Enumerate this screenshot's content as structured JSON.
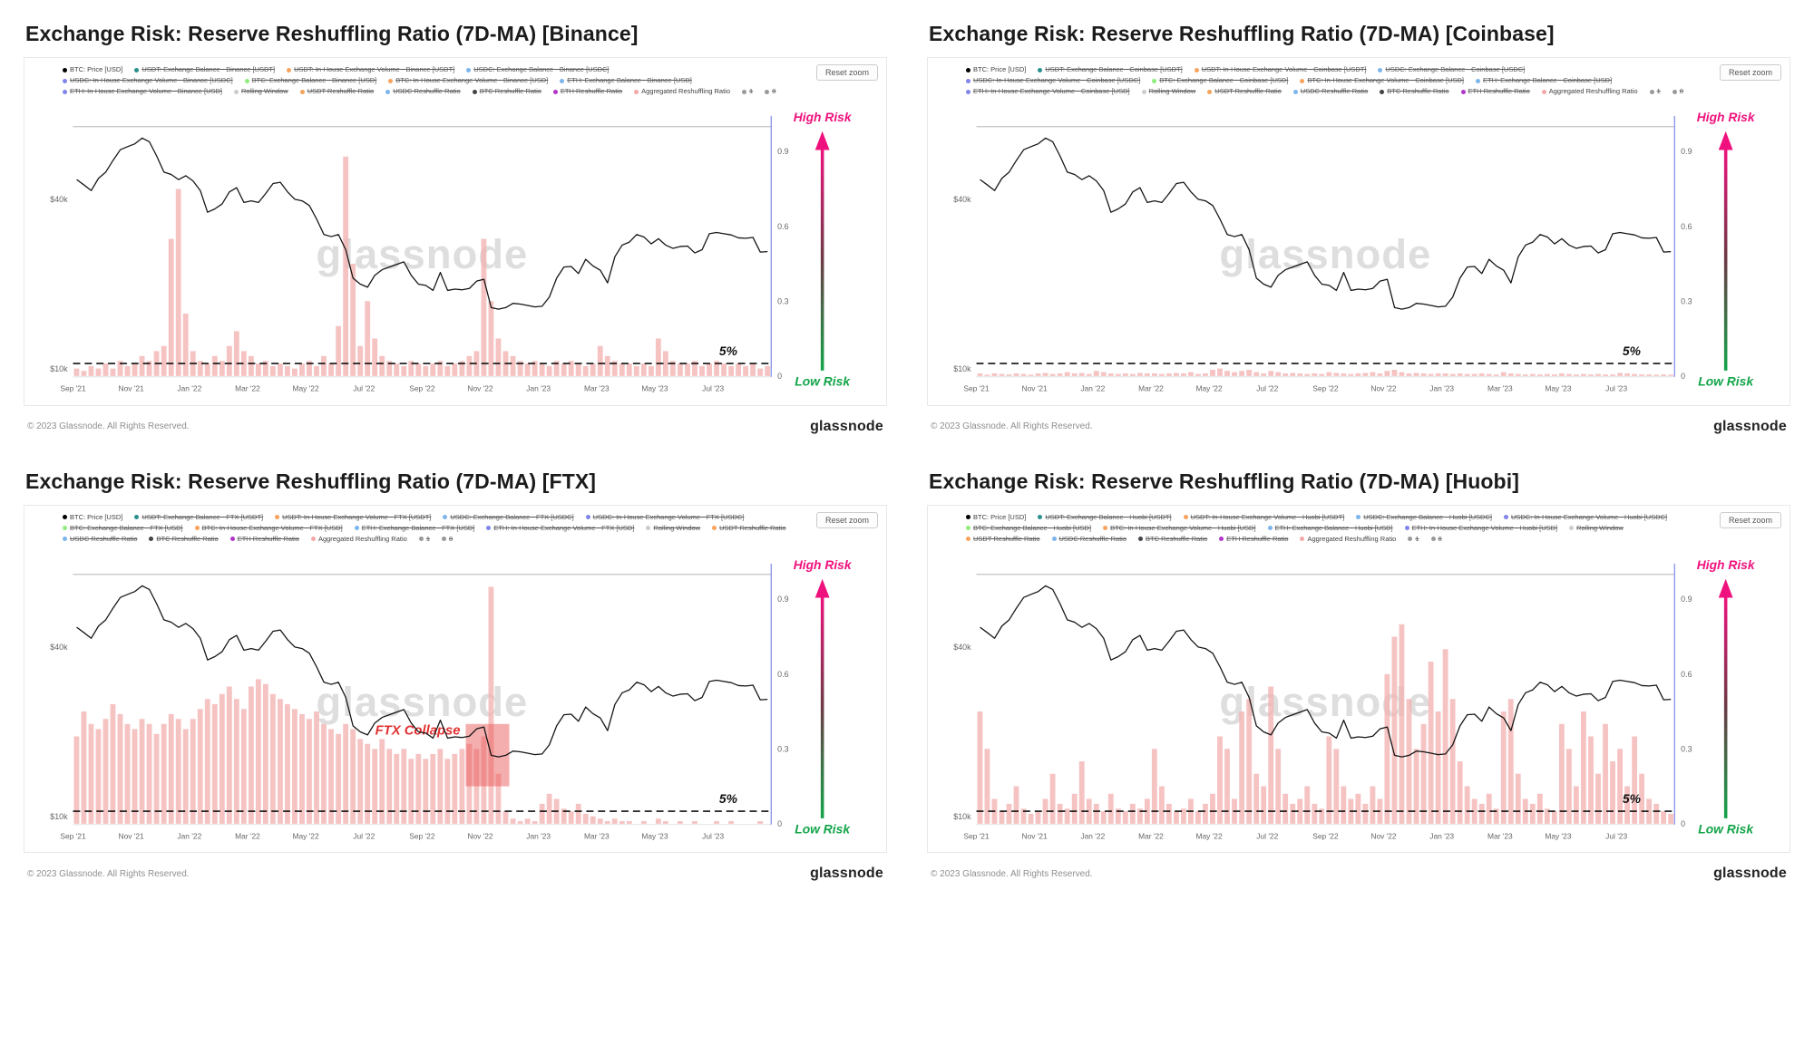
{
  "shared": {
    "reset_zoom_label": "Reset zoom",
    "watermark": "glassnode",
    "copyright": "© 2023 Glassnode. All Rights Reserved.",
    "brand": "glassnode",
    "high_risk_label": "High Risk",
    "low_risk_label": "Low Risk",
    "five_pct_label": "5%",
    "threshold_value": 0.05,
    "left_axis_ticks": [
      "$40k",
      "$10k"
    ],
    "right_axis_ticks": [
      "0.9",
      "0.6",
      "0.3",
      "0"
    ],
    "x_tick_labels": [
      "Sep '21",
      "Nov '21",
      "Jan '22",
      "Mar '22",
      "May '22",
      "Jul '22",
      "Sep '22",
      "Nov '22",
      "Jan '23",
      "Mar '23",
      "May '23",
      "Jul '23"
    ],
    "x_start": "Sep 2021",
    "x_end": "Aug 2023",
    "x_resolution": "weekly",
    "colors": {
      "bar": "#f3b2b2",
      "price": "#151515",
      "high_risk": "#ef127e",
      "low_risk": "#13a549",
      "annotation": "#e03131",
      "right_axis": "#7d88e8"
    },
    "legend_colors": [
      "#000000",
      "#2b908f",
      "#f7a35c",
      "#7cb5ec",
      "#8085e9",
      "#90ed7d",
      "#f7a35c",
      "#7cb5ec",
      "#8085e9",
      "#cccccc",
      "#f7a35c",
      "#7cb5ec",
      "#434348",
      "#b235c9",
      "#f4a9a9",
      "#999999",
      "#999999"
    ],
    "btc_price_usd_thousands": [
      47,
      45,
      43,
      47.5,
      50,
      55,
      60,
      61.5,
      63,
      66,
      64,
      57,
      50,
      49,
      47,
      48.5,
      46.5,
      43,
      36,
      37,
      38.5,
      42.5,
      44,
      39,
      39.5,
      39,
      42,
      45.5,
      46,
      42.5,
      40,
      39.5,
      38,
      34,
      30,
      29.5,
      30,
      26.5,
      21,
      20,
      19.5,
      21.5,
      22.5,
      23,
      23.5,
      24,
      21.5,
      20,
      19.8,
      19,
      22,
      19,
      19.2,
      19.1,
      19.3,
      20.5,
      20.8,
      16.5,
      16.3,
      16.5,
      17.1,
      17,
      16.8,
      16.6,
      16.7,
      18,
      21,
      23,
      23.1,
      21.8,
      24.5,
      23.2,
      22.4,
      20.2,
      25,
      27.5,
      28.2,
      30,
      29.4,
      27.8,
      29,
      27.5,
      26.8,
      27.2,
      27.3,
      25.8,
      26.5,
      30.2,
      30.5,
      30.2,
      29.9,
      29.2,
      29.1,
      29.3,
      26,
      26.1
    ]
  },
  "chart_data": [
    {
      "exchange": "Binance",
      "title": "Exchange Risk: Reserve Reshuffling Ratio (7D-MA) [Binance]",
      "type": "bar",
      "bar_series_name": "Aggregated Reshuffling Ratio",
      "line_series_name": "BTC: Price [USD]",
      "y_right_range": [
        0,
        1
      ],
      "y_left_scale": "log",
      "annotation": null,
      "aggregated_reshuffling_ratio": [
        0.03,
        0.02,
        0.04,
        0.03,
        0.05,
        0.03,
        0.06,
        0.04,
        0.05,
        0.08,
        0.06,
        0.1,
        0.12,
        0.55,
        0.75,
        0.25,
        0.1,
        0.06,
        0.05,
        0.08,
        0.06,
        0.12,
        0.18,
        0.1,
        0.08,
        0.05,
        0.06,
        0.04,
        0.05,
        0.04,
        0.03,
        0.05,
        0.06,
        0.04,
        0.08,
        0.05,
        0.2,
        0.88,
        0.45,
        0.12,
        0.3,
        0.15,
        0.08,
        0.06,
        0.05,
        0.04,
        0.06,
        0.05,
        0.04,
        0.05,
        0.06,
        0.04,
        0.05,
        0.06,
        0.08,
        0.1,
        0.55,
        0.3,
        0.15,
        0.1,
        0.08,
        0.06,
        0.05,
        0.06,
        0.05,
        0.04,
        0.06,
        0.05,
        0.06,
        0.05,
        0.04,
        0.05,
        0.12,
        0.08,
        0.06,
        0.05,
        0.05,
        0.04,
        0.05,
        0.04,
        0.15,
        0.1,
        0.06,
        0.05,
        0.05,
        0.06,
        0.04,
        0.05,
        0.06,
        0.05,
        0.04,
        0.05,
        0.04,
        0.05,
        0.03,
        0.04
      ],
      "legend": [
        {
          "label": "BTC: Price [USD]",
          "struck": false
        },
        {
          "label": "USDT: Exchange Balance - Binance [USDT]",
          "struck": true
        },
        {
          "label": "USDT: In-House Exchange Volume - Binance [USDT]",
          "struck": true
        },
        {
          "label": "USDC: Exchange Balance - Binance [USDC]",
          "struck": true
        },
        {
          "label": "USDC: In-House Exchange Volume - Binance [USDC]",
          "struck": true
        },
        {
          "label": "BTC: Exchange Balance - Binance [USD]",
          "struck": true
        },
        {
          "label": "BTC: In-House Exchange Volume - Binance [USD]",
          "struck": true
        },
        {
          "label": "ETH: Exchange Balance - Binance [USD]",
          "struck": true
        },
        {
          "label": "ETH: In-House Exchange Volume - Binance [USD]",
          "struck": true
        },
        {
          "label": "Rolling Window",
          "struck": true
        },
        {
          "label": "USDT Reshuffle Ratio",
          "struck": true
        },
        {
          "label": "USDC Reshuffle Ratio",
          "struck": true
        },
        {
          "label": "BTC Reshuffle Ratio",
          "struck": true
        },
        {
          "label": "ETH Reshuffle Ratio",
          "struck": true
        },
        {
          "label": "Aggregated Reshuffling Ratio",
          "struck": false
        },
        {
          "label": "1",
          "struck": true
        },
        {
          "label": "0",
          "struck": true
        }
      ]
    },
    {
      "exchange": "Coinbase",
      "title": "Exchange Risk: Reserve Reshuffling Ratio (7D-MA) [Coinbase]",
      "type": "bar",
      "bar_series_name": "Aggregated Reshuffling Ratio",
      "line_series_name": "BTC: Price [USD]",
      "y_right_range": [
        0,
        1
      ],
      "y_left_scale": "log",
      "annotation": null,
      "aggregated_reshuffling_ratio": [
        0.01,
        0.005,
        0.01,
        0.008,
        0.006,
        0.01,
        0.008,
        0.005,
        0.01,
        0.012,
        0.008,
        0.01,
        0.015,
        0.01,
        0.012,
        0.008,
        0.02,
        0.015,
        0.01,
        0.008,
        0.01,
        0.008,
        0.012,
        0.01,
        0.01,
        0.008,
        0.01,
        0.012,
        0.01,
        0.015,
        0.008,
        0.01,
        0.025,
        0.03,
        0.02,
        0.015,
        0.02,
        0.025,
        0.015,
        0.01,
        0.02,
        0.015,
        0.01,
        0.012,
        0.01,
        0.008,
        0.01,
        0.008,
        0.015,
        0.012,
        0.01,
        0.008,
        0.01,
        0.012,
        0.015,
        0.01,
        0.02,
        0.025,
        0.015,
        0.01,
        0.012,
        0.01,
        0.008,
        0.01,
        0.01,
        0.008,
        0.01,
        0.008,
        0.008,
        0.01,
        0.008,
        0.006,
        0.015,
        0.01,
        0.008,
        0.006,
        0.008,
        0.006,
        0.008,
        0.006,
        0.01,
        0.008,
        0.006,
        0.008,
        0.006,
        0.008,
        0.006,
        0.006,
        0.012,
        0.01,
        0.008,
        0.006,
        0.006,
        0.005,
        0.006,
        0.005
      ],
      "legend": [
        {
          "label": "BTC: Price [USD]",
          "struck": false
        },
        {
          "label": "USDT: Exchange Balance - Coinbase [USDT]",
          "struck": true
        },
        {
          "label": "USDT: In-House Exchange Volume - Coinbase [USDT]",
          "struck": true
        },
        {
          "label": "USDC: Exchange Balance - Coinbase [USDC]",
          "struck": true
        },
        {
          "label": "USDC: In-House Exchange Volume - Coinbase [USDC]",
          "struck": true
        },
        {
          "label": "BTC: Exchange Balance - Coinbase [USD]",
          "struck": true
        },
        {
          "label": "BTC: In-House Exchange Volume - Coinbase [USD]",
          "struck": true
        },
        {
          "label": "ETH: Exchange Balance - Coinbase [USD]",
          "struck": true
        },
        {
          "label": "ETH: In-House Exchange Volume - Coinbase [USD]",
          "struck": true
        },
        {
          "label": "Rolling Window",
          "struck": true
        },
        {
          "label": "USDT Reshuffle Ratio",
          "struck": true
        },
        {
          "label": "USDC Reshuffle Ratio",
          "struck": true
        },
        {
          "label": "BTC Reshuffle Ratio",
          "struck": true
        },
        {
          "label": "ETH Reshuffle Ratio",
          "struck": true
        },
        {
          "label": "Aggregated Reshuffling Ratio",
          "struck": false
        },
        {
          "label": "1",
          "struck": true
        },
        {
          "label": "0",
          "struck": true
        }
      ]
    },
    {
      "exchange": "FTX",
      "title": "Exchange Risk: Reserve Reshuffling Ratio (7D-MA) [FTX]",
      "type": "bar",
      "bar_series_name": "Aggregated Reshuffling Ratio",
      "line_series_name": "BTC: Price [USD]",
      "y_right_range": [
        0,
        1
      ],
      "y_left_scale": "log",
      "annotation": {
        "text": "FTX Collapse",
        "x_index_start": 54,
        "x_index_end": 60,
        "ratio_top": 0.4,
        "ratio_bottom": 0.15
      },
      "aggregated_reshuffling_ratio": [
        0.35,
        0.45,
        0.4,
        0.38,
        0.42,
        0.48,
        0.44,
        0.4,
        0.38,
        0.42,
        0.4,
        0.36,
        0.4,
        0.44,
        0.42,
        0.38,
        0.42,
        0.46,
        0.5,
        0.48,
        0.52,
        0.55,
        0.5,
        0.46,
        0.55,
        0.58,
        0.56,
        0.52,
        0.5,
        0.48,
        0.46,
        0.44,
        0.42,
        0.45,
        0.4,
        0.38,
        0.36,
        0.4,
        0.38,
        0.34,
        0.32,
        0.3,
        0.34,
        0.3,
        0.28,
        0.3,
        0.26,
        0.28,
        0.26,
        0.28,
        0.3,
        0.26,
        0.28,
        0.3,
        0.32,
        0.3,
        0.35,
        0.95,
        0.2,
        0.05,
        0.02,
        0.01,
        0.02,
        0.01,
        0.08,
        0.12,
        0.1,
        0.06,
        0.05,
        0.08,
        0.04,
        0.03,
        0.02,
        0.01,
        0.02,
        0.01,
        0.01,
        0,
        0.01,
        0,
        0.02,
        0.01,
        0,
        0.01,
        0,
        0.01,
        0,
        0,
        0.01,
        0,
        0.01,
        0,
        0,
        0,
        0.01,
        0
      ],
      "legend": [
        {
          "label": "BTC: Price [USD]",
          "struck": false
        },
        {
          "label": "USDT: Exchange Balance - FTX [USDT]",
          "struck": true
        },
        {
          "label": "USDT: In-House Exchange Volume - FTX [USDT]",
          "struck": true
        },
        {
          "label": "USDC: Exchange Balance - FTX [USDC]",
          "struck": true
        },
        {
          "label": "USDC: In-House Exchange Volume - FTX [USDC]",
          "struck": true
        },
        {
          "label": "BTC: Exchange Balance - FTX [USD]",
          "struck": true
        },
        {
          "label": "BTC: In-House Exchange Volume - FTX [USD]",
          "struck": true
        },
        {
          "label": "ETH: Exchange Balance - FTX [USD]",
          "struck": true
        },
        {
          "label": "ETH: In-House Exchange Volume - FTX [USD]",
          "struck": true
        },
        {
          "label": "Rolling Window",
          "struck": true
        },
        {
          "label": "USDT Reshuffle Ratio",
          "struck": true
        },
        {
          "label": "USDC Reshuffle Ratio",
          "struck": true
        },
        {
          "label": "BTC Reshuffle Ratio",
          "struck": true
        },
        {
          "label": "ETH Reshuffle Ratio",
          "struck": true
        },
        {
          "label": "Aggregated Reshuffling Ratio",
          "struck": false
        },
        {
          "label": "1",
          "struck": true
        },
        {
          "label": "0",
          "struck": true
        }
      ]
    },
    {
      "exchange": "Huobi",
      "title": "Exchange Risk: Reserve Reshuffling Ratio (7D-MA) [Huobi]",
      "type": "bar",
      "bar_series_name": "Aggregated Reshuffling Ratio",
      "line_series_name": "BTC: Price [USD]",
      "y_right_range": [
        0,
        1
      ],
      "y_left_scale": "log",
      "annotation": null,
      "aggregated_reshuffling_ratio": [
        0.45,
        0.3,
        0.1,
        0.05,
        0.08,
        0.15,
        0.06,
        0.04,
        0.05,
        0.1,
        0.2,
        0.08,
        0.06,
        0.12,
        0.25,
        0.1,
        0.08,
        0.05,
        0.12,
        0.06,
        0.05,
        0.08,
        0.06,
        0.1,
        0.3,
        0.15,
        0.08,
        0.05,
        0.06,
        0.1,
        0.05,
        0.08,
        0.12,
        0.35,
        0.3,
        0.1,
        0.45,
        0.5,
        0.2,
        0.15,
        0.55,
        0.3,
        0.12,
        0.08,
        0.1,
        0.15,
        0.08,
        0.06,
        0.35,
        0.3,
        0.15,
        0.1,
        0.12,
        0.08,
        0.15,
        0.1,
        0.6,
        0.75,
        0.8,
        0.5,
        0.3,
        0.4,
        0.65,
        0.45,
        0.7,
        0.5,
        0.25,
        0.15,
        0.1,
        0.08,
        0.12,
        0.06,
        0.45,
        0.5,
        0.2,
        0.1,
        0.08,
        0.12,
        0.06,
        0.05,
        0.4,
        0.3,
        0.15,
        0.45,
        0.35,
        0.2,
        0.4,
        0.25,
        0.3,
        0.15,
        0.35,
        0.2,
        0.1,
        0.08,
        0.05,
        0.04
      ],
      "legend": [
        {
          "label": "BTC: Price [USD]",
          "struck": false
        },
        {
          "label": "USDT: Exchange Balance - Huobi [USDT]",
          "struck": true
        },
        {
          "label": "USDT: In-House Exchange Volume - Huobi [USDT]",
          "struck": true
        },
        {
          "label": "USDC: Exchange Balance - Huobi [USDC]",
          "struck": true
        },
        {
          "label": "USDC: In-House Exchange Volume - Huobi [USDC]",
          "struck": true
        },
        {
          "label": "BTC: Exchange Balance - Huobi [USD]",
          "struck": true
        },
        {
          "label": "BTC: In-House Exchange Volume - Huobi [USD]",
          "struck": true
        },
        {
          "label": "ETH: Exchange Balance - Huobi [USD]",
          "struck": true
        },
        {
          "label": "ETH: In-House Exchange Volume - Huobi [USD]",
          "struck": true
        },
        {
          "label": "Rolling Window",
          "struck": true
        },
        {
          "label": "USDT Reshuffle Ratio",
          "struck": true
        },
        {
          "label": "USDC Reshuffle Ratio",
          "struck": true
        },
        {
          "label": "BTC Reshuffle Ratio",
          "struck": true
        },
        {
          "label": "ETH Reshuffle Ratio",
          "struck": true
        },
        {
          "label": "Aggregated Reshuffling Ratio",
          "struck": false
        },
        {
          "label": "1",
          "struck": true
        },
        {
          "label": "0",
          "struck": true
        }
      ]
    }
  ]
}
